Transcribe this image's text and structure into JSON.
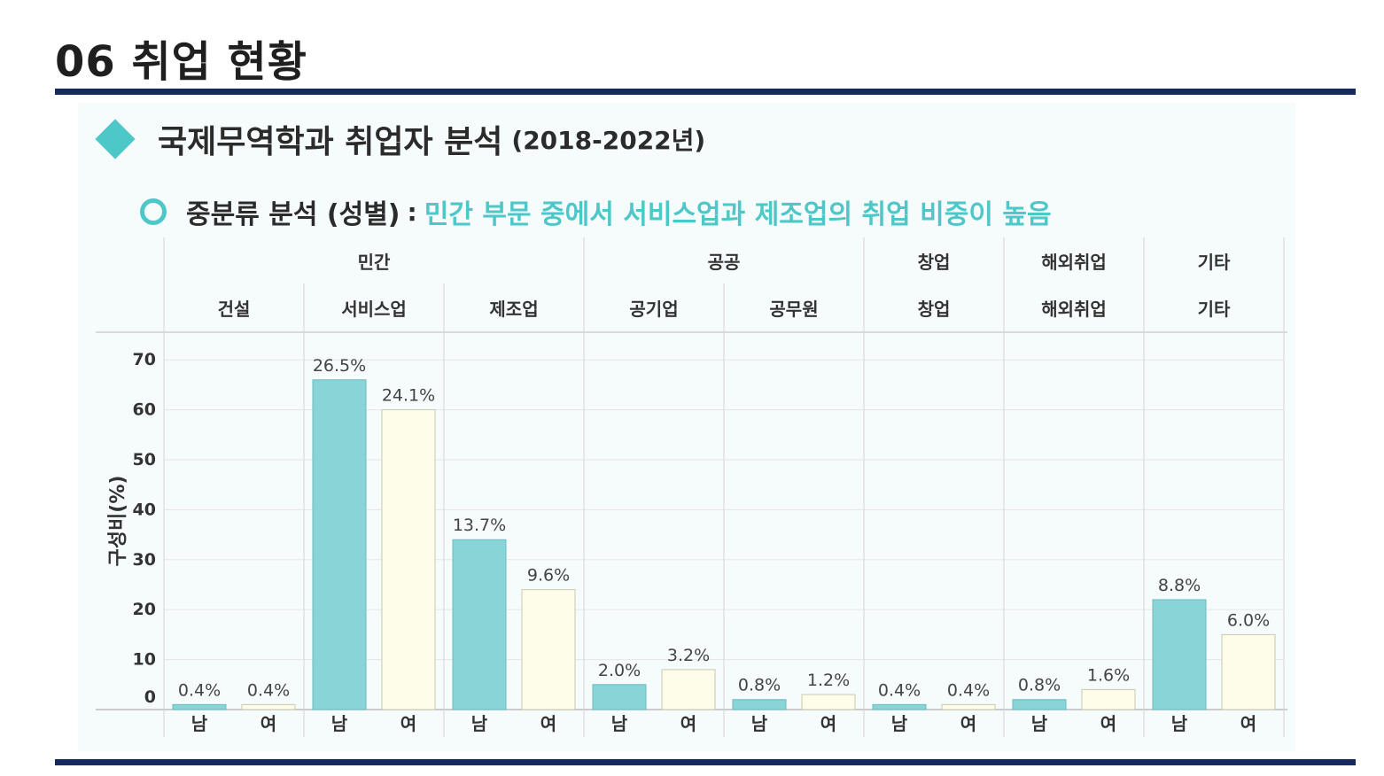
{
  "page": {
    "title": "06 취업 현황"
  },
  "section": {
    "title": "국제무역학과 취업자 분석",
    "period": "(2018-2022년)",
    "sub_label": "중분류 분석 (성별)",
    "sub_colon": ":",
    "sub_highlight": "민간 부문 중에서 서비스업과 제조업의 취업 비중이 높음"
  },
  "colors": {
    "male": "#88d4d6",
    "female": "#fdfdea",
    "accent": "#4ec7c9",
    "rule": "#172a5e"
  },
  "chart_data": {
    "type": "bar",
    "ylabel": "구성비(%)",
    "ylim": [
      0,
      70
    ],
    "yticks": [
      0,
      10,
      20,
      30,
      40,
      50,
      60,
      70
    ],
    "grid": true,
    "groups": [
      {
        "label": "민간",
        "span": 3
      },
      {
        "label": "공공",
        "span": 2
      },
      {
        "label": "창업",
        "span": 1
      },
      {
        "label": "해외취업",
        "span": 1
      },
      {
        "label": "기타",
        "span": 1
      }
    ],
    "categories": [
      "건설",
      "서비스업",
      "제조업",
      "공기업",
      "공무원",
      "창업",
      "해외취업",
      "기타"
    ],
    "sub_categories": [
      "남",
      "여"
    ],
    "series": [
      {
        "name": "남",
        "values": [
          1,
          66,
          34,
          5,
          2,
          1,
          2,
          22
        ],
        "labels": [
          "0.4%",
          "26.5%",
          "13.7%",
          "2.0%",
          "0.8%",
          "0.4%",
          "0.8%",
          "8.8%"
        ]
      },
      {
        "name": "여",
        "values": [
          1,
          60,
          24,
          8,
          3,
          1,
          4,
          15
        ],
        "labels": [
          "0.4%",
          "24.1%",
          "9.6%",
          "3.2%",
          "1.2%",
          "0.4%",
          "1.6%",
          "6.0%"
        ]
      }
    ]
  }
}
